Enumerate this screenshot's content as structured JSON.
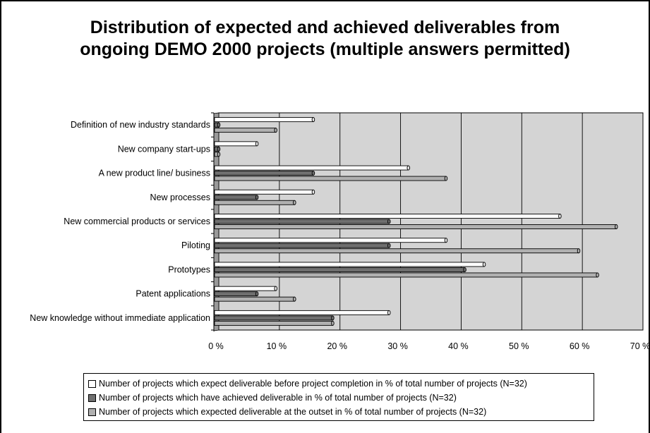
{
  "chart_data": {
    "type": "bar",
    "orientation": "horizontal",
    "title_lines": [
      "Distribution of expected and achieved deliverables from",
      "ongoing DEMO 2000 projects (multiple answers permitted)"
    ],
    "categories": [
      "Definition of new industry standards",
      "New company start-ups",
      "A new product line/ business",
      "New processes",
      "New commercial products or services",
      "Piloting",
      "Prototypes",
      "Patent applications",
      "New knowledge without immediate application"
    ],
    "series": [
      {
        "name": "Number of projects which expect deliverable before project completion in % of total number of projects (N=32)",
        "color": "#ffffff",
        "values": [
          15.6,
          6.3,
          31.3,
          15.6,
          56.3,
          37.5,
          43.8,
          9.4,
          28.1
        ]
      },
      {
        "name": "Number of projects which have achieved deliverable in % of total number of projects (N=32)",
        "color": "#6f6f6f",
        "values": [
          0,
          0,
          15.6,
          6.3,
          28.1,
          28.1,
          40.6,
          6.3,
          18.8
        ]
      },
      {
        "name": "Number of projects which expected deliverable at the outset in % of total number of projects (N=32)",
        "color": "#b0b0b0",
        "values": [
          9.4,
          0,
          37.5,
          12.5,
          65.6,
          59.4,
          62.5,
          12.5,
          18.8
        ]
      }
    ],
    "x_ticks": [
      "0 %",
      "10 %",
      "20 %",
      "30 %",
      "40 %",
      "50 %",
      "60 %",
      "70 %"
    ],
    "xlim": [
      0,
      70
    ],
    "grid": true,
    "plot_background": "#d4d4d4",
    "legend_position": "bottom"
  }
}
